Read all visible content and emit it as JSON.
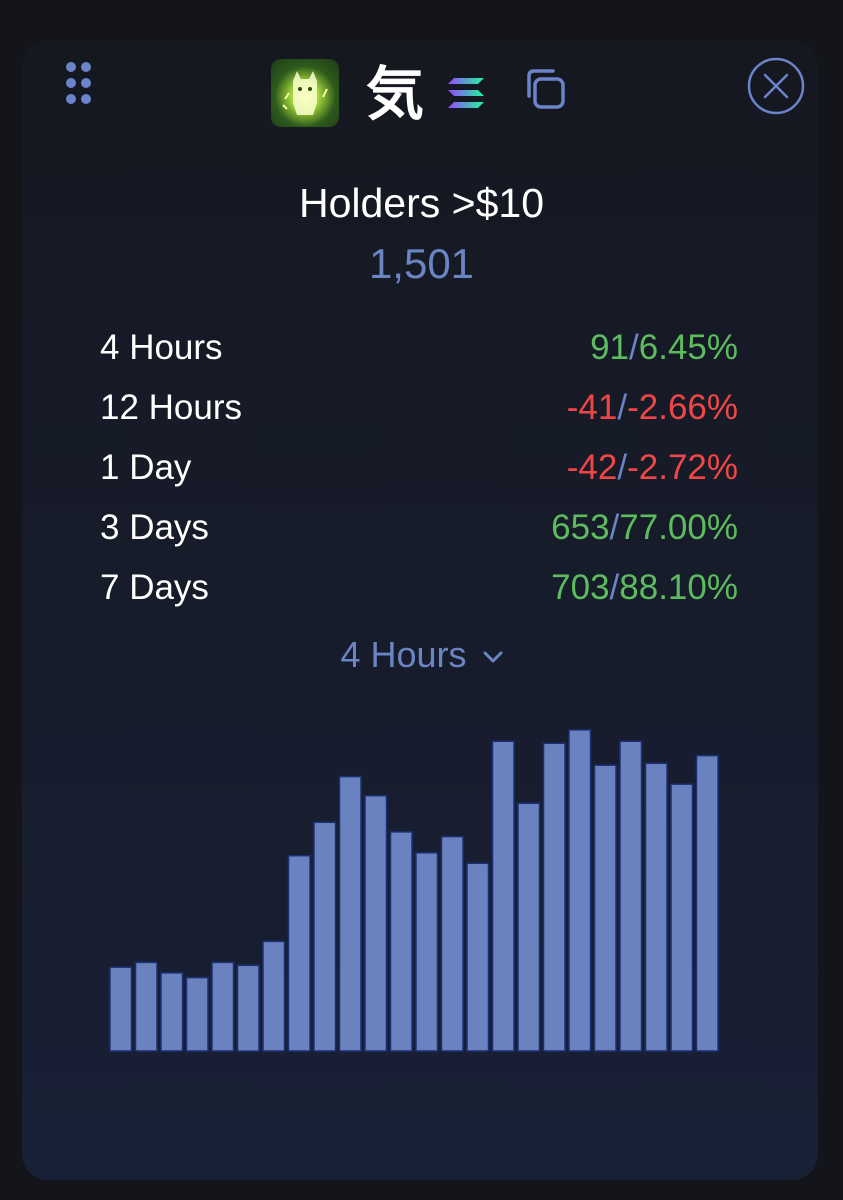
{
  "header": {
    "token_symbol": "気",
    "icons": {
      "grip": "drag-grip-icon",
      "logo": "token-logo-icon",
      "chain": "solana-icon",
      "copy": "copy-icon",
      "close": "close-icon"
    }
  },
  "title": "Holders >$10",
  "total": "1,501",
  "stats": [
    {
      "label": "4 Hours",
      "count": "91",
      "pct": "6.45%",
      "trend": "pos"
    },
    {
      "label": "12 Hours",
      "count": "-41",
      "pct": "-2.66%",
      "trend": "neg"
    },
    {
      "label": "1 Day",
      "count": "-42",
      "pct": "-2.72%",
      "trend": "neg"
    },
    {
      "label": "3 Days",
      "count": "653",
      "pct": "77.00%",
      "trend": "pos"
    },
    {
      "label": "7 Days",
      "count": "703",
      "pct": "88.10%",
      "trend": "pos"
    }
  ],
  "period_select": {
    "selected": "4 Hours"
  },
  "colors": {
    "accent": "#6a84c4",
    "positive": "#5cbc5e",
    "negative": "#f04646",
    "bar_fill": "#6a82c0",
    "bar_stroke": "#1d2f73"
  },
  "chart_data": {
    "type": "bar",
    "values": [
      88,
      93,
      82,
      77,
      93,
      90,
      115,
      205,
      240,
      288,
      268,
      230,
      208,
      225,
      197,
      325,
      260,
      323,
      337,
      300,
      325,
      302,
      280,
      310
    ],
    "ylim": [
      0,
      360
    ],
    "grid": false,
    "legend": "none"
  }
}
